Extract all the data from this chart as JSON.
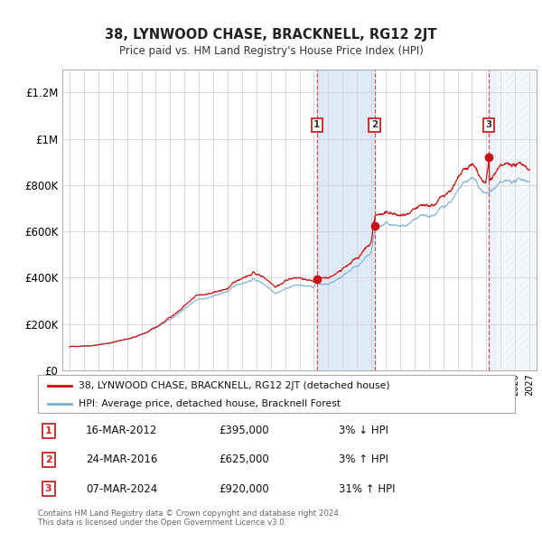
{
  "title": "38, LYNWOOD CHASE, BRACKNELL, RG12 2JT",
  "subtitle": "Price paid vs. HM Land Registry's House Price Index (HPI)",
  "legend_line1": "38, LYNWOOD CHASE, BRACKNELL, RG12 2JT (detached house)",
  "legend_line2": "HPI: Average price, detached house, Bracknell Forest",
  "footer1": "Contains HM Land Registry data © Crown copyright and database right 2024.",
  "footer2": "This data is licensed under the Open Government Licence v3.0.",
  "transactions": [
    {
      "num": 1,
      "date": "16-MAR-2012",
      "price": 395000,
      "hpi_change": "3% ↓ HPI",
      "x_year": 2012.21
    },
    {
      "num": 2,
      "date": "24-MAR-2016",
      "price": 625000,
      "hpi_change": "3% ↑ HPI",
      "x_year": 2016.23
    },
    {
      "num": 3,
      "date": "07-MAR-2024",
      "price": 920000,
      "hpi_change": "31% ↑ HPI",
      "x_year": 2024.18
    }
  ],
  "hpi_line_color": "#7bafd4",
  "price_line_color": "#cc1111",
  "dot_color": "#cc1111",
  "shade_color": "#deeaf7",
  "ylim": [
    0,
    1300000
  ],
  "xlim_start": 1994.5,
  "xlim_end": 2027.5,
  "yticks": [
    0,
    200000,
    400000,
    600000,
    800000,
    1000000,
    1200000
  ],
  "ytick_labels": [
    "£0",
    "£200K",
    "£400K",
    "£600K",
    "£800K",
    "£1M",
    "£1.2M"
  ],
  "background_color": "#ffffff",
  "grid_color": "#cccccc"
}
